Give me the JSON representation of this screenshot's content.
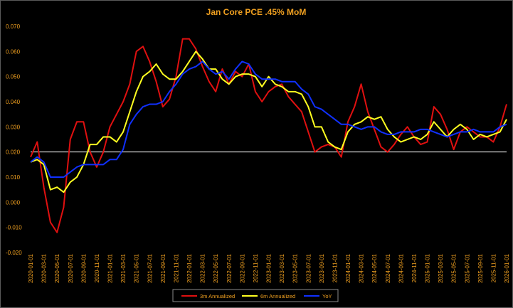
{
  "chart_data": {
    "type": "line",
    "title": "Jan Core PCE .45% MoM",
    "xlabel": "",
    "ylabel": "",
    "ylim": [
      -0.02,
      0.07
    ],
    "yticks": [
      "0.070",
      "0.060",
      "0.050",
      "0.040",
      "0.030",
      "0.020",
      "0.010",
      "0.000",
      "-0.010",
      "-0.020"
    ],
    "ytick_values": [
      0.07,
      0.06,
      0.05,
      0.04,
      0.03,
      0.02,
      0.01,
      0.0,
      -0.01,
      -0.02
    ],
    "reference_line": 0.02,
    "grid": false,
    "legend_position": "bottom",
    "colors": {
      "background": "#000000",
      "text": "#f0a020",
      "reference_line": "#ffffff"
    },
    "x": [
      "2020-01-01",
      "2020-02-01",
      "2020-03-01",
      "2020-04-01",
      "2020-05-01",
      "2020-06-01",
      "2020-07-01",
      "2020-08-01",
      "2020-09-01",
      "2020-10-01",
      "2020-11-01",
      "2020-12-01",
      "2021-01-01",
      "2021-02-01",
      "2021-03-01",
      "2021-04-01",
      "2021-05-01",
      "2021-06-01",
      "2021-07-01",
      "2021-08-01",
      "2021-09-01",
      "2021-10-01",
      "2021-11-01",
      "2021-12-01",
      "2022-01-01",
      "2022-02-01",
      "2022-03-01",
      "2022-04-01",
      "2022-05-01",
      "2022-06-01",
      "2022-07-01",
      "2022-08-01",
      "2022-09-01",
      "2022-10-01",
      "2022-11-01",
      "2022-12-01",
      "2023-01-01",
      "2023-02-01",
      "2023-03-01",
      "2023-04-01",
      "2023-05-01",
      "2023-06-01",
      "2023-07-01",
      "2023-08-01",
      "2023-09-01",
      "2023-10-01",
      "2023-11-01",
      "2023-12-01",
      "2024-01-01",
      "2024-02-01",
      "2024-03-01",
      "2024-04-01",
      "2024-05-01",
      "2024-06-01",
      "2024-07-01",
      "2024-08-01",
      "2024-09-01",
      "2024-10-01",
      "2024-11-01",
      "2024-12-01",
      "2025-01-01",
      "2025-02-01",
      "2025-03-01",
      "2025-04-01",
      "2025-05-01",
      "2025-06-01",
      "2025-07-01",
      "2025-08-01",
      "2025-09-01",
      "2025-10-01",
      "2025-11-01",
      "2025-12-01",
      "2026-01-01"
    ],
    "x_tick_labels": [
      "2020-01-01",
      "2020-03-01",
      "2020-05-01",
      "2020-07-01",
      "2020-09-01",
      "2020-11-01",
      "2021-01-01",
      "2021-03-01",
      "2021-05-01",
      "2021-07-01",
      "2021-09-01",
      "2021-11-01",
      "2022-01-01",
      "2022-03-01",
      "2022-05-01",
      "2022-07-01",
      "2022-09-01",
      "2022-11-01",
      "2023-01-01",
      "2023-03-01",
      "2023-05-01",
      "2023-07-01",
      "2023-09-01",
      "2023-11-01",
      "2024-01-01",
      "2024-03-01",
      "2024-05-01",
      "2024-07-01",
      "2024-09-01",
      "2024-11-01",
      "2025-01-01",
      "2025-03-01",
      "2025-05-01",
      "2025-07-01",
      "2025-09-01",
      "2025-11-01",
      "2026-01-01"
    ],
    "series": [
      {
        "name": "3m Annualized",
        "color": "#e01010",
        "values": [
          0.018,
          0.024,
          0.006,
          -0.008,
          -0.012,
          -0.002,
          0.025,
          0.032,
          0.032,
          0.02,
          0.014,
          0.02,
          0.03,
          0.035,
          0.04,
          0.047,
          0.06,
          0.062,
          0.056,
          0.048,
          0.038,
          0.041,
          0.05,
          0.065,
          0.065,
          0.061,
          0.054,
          0.048,
          0.044,
          0.053,
          0.047,
          0.052,
          0.05,
          0.055,
          0.044,
          0.04,
          0.044,
          0.046,
          0.047,
          0.042,
          0.039,
          0.036,
          0.028,
          0.02,
          0.022,
          0.023,
          0.022,
          0.018,
          0.032,
          0.038,
          0.047,
          0.036,
          0.029,
          0.022,
          0.02,
          0.023,
          0.027,
          0.03,
          0.026,
          0.023,
          0.024,
          0.038,
          0.035,
          0.029,
          0.021,
          0.028,
          0.03,
          0.028,
          0.026,
          0.026,
          0.024,
          0.03,
          0.039
        ]
      },
      {
        "name": "6m Annualized",
        "color": "#ffff20",
        "values": [
          0.016,
          0.017,
          0.015,
          0.005,
          0.006,
          0.004,
          0.008,
          0.01,
          0.015,
          0.023,
          0.023,
          0.026,
          0.026,
          0.024,
          0.028,
          0.036,
          0.044,
          0.05,
          0.052,
          0.055,
          0.051,
          0.049,
          0.049,
          0.052,
          0.056,
          0.06,
          0.057,
          0.053,
          0.053,
          0.049,
          0.047,
          0.05,
          0.051,
          0.051,
          0.05,
          0.046,
          0.05,
          0.047,
          0.046,
          0.044,
          0.044,
          0.043,
          0.038,
          0.03,
          0.03,
          0.024,
          0.022,
          0.021,
          0.028,
          0.031,
          0.032,
          0.034,
          0.033,
          0.034,
          0.029,
          0.026,
          0.024,
          0.025,
          0.026,
          0.025,
          0.027,
          0.032,
          0.029,
          0.026,
          0.029,
          0.031,
          0.029,
          0.025,
          0.027,
          0.026,
          0.027,
          0.028,
          0.033
        ]
      },
      {
        "name": "YoY",
        "color": "#1030ff",
        "values": [
          0.016,
          0.018,
          0.016,
          0.01,
          0.01,
          0.01,
          0.012,
          0.014,
          0.015,
          0.015,
          0.015,
          0.015,
          0.017,
          0.017,
          0.021,
          0.031,
          0.035,
          0.038,
          0.039,
          0.039,
          0.04,
          0.044,
          0.047,
          0.051,
          0.053,
          0.054,
          0.056,
          0.053,
          0.051,
          0.052,
          0.049,
          0.053,
          0.056,
          0.055,
          0.051,
          0.049,
          0.049,
          0.049,
          0.048,
          0.048,
          0.048,
          0.045,
          0.043,
          0.038,
          0.037,
          0.035,
          0.033,
          0.031,
          0.031,
          0.03,
          0.029,
          0.03,
          0.03,
          0.028,
          0.027,
          0.027,
          0.028,
          0.028,
          0.028,
          0.029,
          0.029,
          0.028,
          0.027,
          0.026,
          0.027,
          0.028,
          0.028,
          0.029,
          0.028,
          0.028,
          0.028,
          0.03,
          0.031
        ]
      }
    ]
  }
}
